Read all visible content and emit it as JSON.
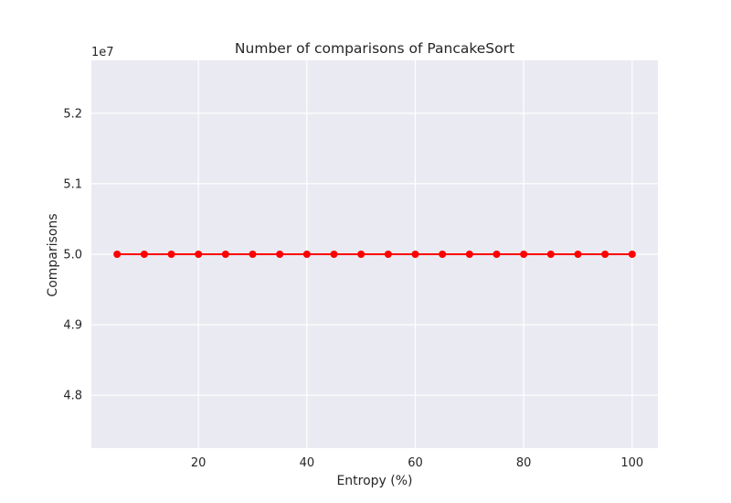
{
  "chart_data": {
    "type": "line",
    "title": "Number of comparisons of PancakeSort",
    "xlabel": "Entropy (%)",
    "ylabel": "Comparisons",
    "y_offset_label": "1e7",
    "y_scale_factor": 10000000,
    "xlim": [
      0.25,
      104.75
    ],
    "ylim": [
      47.25,
      52.75
    ],
    "x_ticks": [
      20,
      40,
      60,
      80,
      100
    ],
    "x_tick_labels": [
      "20",
      "40",
      "60",
      "80",
      "100"
    ],
    "y_ticks": [
      4.8,
      4.9,
      5.0,
      5.1,
      5.2
    ],
    "y_tick_labels": [
      "4.8",
      "4.9",
      "5.0",
      "5.1",
      "5.2"
    ],
    "grid": true,
    "background": "#eaeaf2",
    "series": [
      {
        "color": "#ff0000",
        "marker": "circle",
        "x": [
          5,
          10,
          15,
          20,
          25,
          30,
          35,
          40,
          45,
          50,
          55,
          60,
          65,
          70,
          75,
          80,
          85,
          90,
          95,
          100
        ],
        "y": [
          50000000,
          50000000,
          50000000,
          50000000,
          50000000,
          50000000,
          50000000,
          50000000,
          50000000,
          50000000,
          50000000,
          50000000,
          50000000,
          50000000,
          50000000,
          50000000,
          50000000,
          50000000,
          50000000,
          50000000
        ]
      }
    ]
  }
}
